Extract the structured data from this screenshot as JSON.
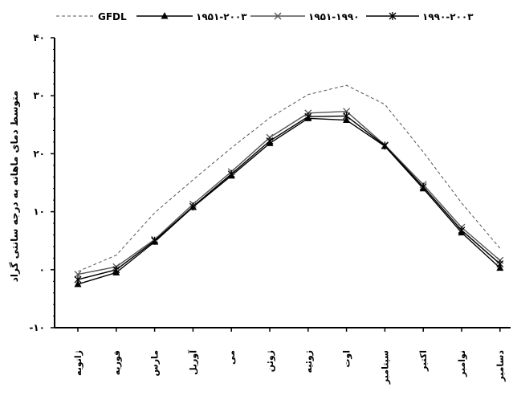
{
  "chart_data": {
    "type": "line",
    "ylabel": "متوسط دمای ماهانه به درجه سانتی گراد",
    "xlabel": "",
    "ylim": [
      -10,
      40
    ],
    "yticks": [
      -10,
      0,
      10,
      20,
      30,
      40
    ],
    "ytick_labels": [
      "-۱۰",
      "۰",
      "۱۰",
      "۲۰",
      "۳۰",
      "۴۰"
    ],
    "categories": [
      "ژانویه",
      "فوریه",
      "مارس",
      "آوریل",
      "می",
      "ژوئن",
      "ژوئیه",
      "اوت",
      "سپتامبر",
      "اکتبر",
      "نوامبر",
      "دسامبر"
    ],
    "legend_position": "top",
    "grid": false,
    "series": [
      {
        "name": "GFDL",
        "style": "dashed",
        "marker": "none",
        "color": "#555555",
        "values": [
          -0.3,
          2.5,
          9.8,
          15.5,
          21.0,
          26.2,
          30.2,
          31.8,
          28.5,
          20.3,
          11.5,
          3.7
        ]
      },
      {
        "name": "۱۹۵۱-۲۰۰۳",
        "style": "solid",
        "marker": "triangle",
        "color": "#000000",
        "values": [
          -2.5,
          -0.5,
          4.8,
          10.8,
          16.2,
          21.8,
          26.1,
          25.8,
          21.3,
          14.0,
          6.4,
          0.3
        ]
      },
      {
        "name": "۱۹۵۱-۱۹۹۰",
        "style": "solid",
        "marker": "x",
        "color": "#555555",
        "values": [
          -0.8,
          0.5,
          5.2,
          11.3,
          16.9,
          22.8,
          27.0,
          27.3,
          21.5,
          14.7,
          7.3,
          1.6
        ]
      },
      {
        "name": "۱۹۹۰-۲۰۰۳",
        "style": "solid",
        "marker": "star",
        "color": "#000000",
        "values": [
          -1.7,
          0.0,
          5.0,
          10.9,
          16.5,
          22.2,
          26.4,
          26.5,
          21.4,
          14.3,
          6.8,
          1.0
        ]
      }
    ]
  }
}
